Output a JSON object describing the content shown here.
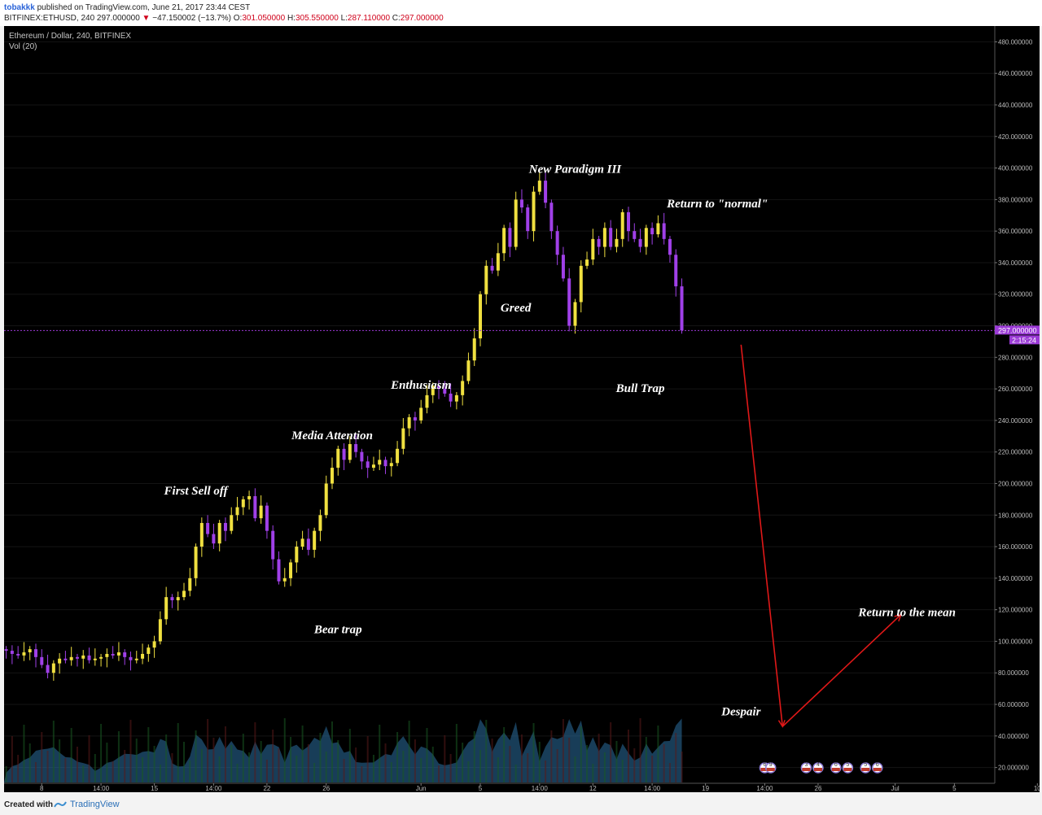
{
  "header": {
    "author": "tobakkk",
    "published": "published on TradingView.com, June 21, 2017 23:44 CEST",
    "symbol": "BITFINEX:ETHUSD, 240",
    "last": "297.000000",
    "change": "−47.150002 (−13.7%)",
    "ohlc": {
      "o_label": "O:",
      "o": "301.050000",
      "h_label": "H:",
      "h": "305.550000",
      "l_label": "L:",
      "l": "287.110000",
      "c_label": "C:",
      "c": "297.000000"
    }
  },
  "legend": {
    "title": "Ethereum / Dollar, 240, BITFINEX",
    "volume": "Vol (20)"
  },
  "price_tag": {
    "price": "297.000000",
    "countdown": "2:15:24"
  },
  "footer": {
    "created": "Created with",
    "brand": "TradingView"
  },
  "colors": {
    "up": "#f0e040",
    "down": "#a040e8",
    "ann_arrow": "#e01818",
    "price_line": "#9b3ad6",
    "volume_area": "#2b6fa0"
  },
  "chart_data": {
    "type": "candlestick",
    "title": "Ethereum / Dollar, 240, BITFINEX",
    "ylim": [
      10,
      490
    ],
    "y_ticks": [
      20,
      40,
      60,
      80,
      100,
      120,
      140,
      160,
      180,
      200,
      220,
      240,
      260,
      280,
      300,
      320,
      340,
      360,
      380,
      400,
      420,
      440,
      460,
      480
    ],
    "y_tick_labels": [
      "20.000000",
      "40.000000",
      "60.000000",
      "80.000000",
      "100.000000",
      "120.000000",
      "140.000000",
      "160.000000",
      "180.000000",
      "200.000000",
      "220.000000",
      "240.000000",
      "260.000000",
      "280.000000",
      "300.000000",
      "320.000000",
      "340.000000",
      "360.000000",
      "380.000000",
      "400.000000",
      "420.000000",
      "440.000000",
      "460.000000",
      "480.000000"
    ],
    "x_ticks": [
      {
        "label": "8",
        "bar": 6
      },
      {
        "label": "14:00",
        "bar": 16
      },
      {
        "label": "15",
        "bar": 25
      },
      {
        "label": "14:00",
        "bar": 35
      },
      {
        "label": "22",
        "bar": 44
      },
      {
        "label": "26",
        "bar": 54
      },
      {
        "label": "Jun",
        "bar": 70
      },
      {
        "label": "5",
        "bar": 80
      },
      {
        "label": "14:00",
        "bar": 90
      },
      {
        "label": "12",
        "bar": 99
      },
      {
        "label": "14:00",
        "bar": 109
      },
      {
        "label": "19",
        "bar": 118
      },
      {
        "label": "14:00",
        "bar": 128
      },
      {
        "label": "26",
        "bar": 137
      },
      {
        "label": "Jul",
        "bar": 150
      },
      {
        "label": "5",
        "bar": 160
      },
      {
        "label": "10",
        "bar": 174
      }
    ],
    "closes": [
      94,
      92,
      91,
      93,
      95,
      90,
      85,
      80,
      86,
      89,
      88,
      90,
      89,
      91,
      88,
      89,
      90,
      92,
      91,
      93,
      90,
      88,
      89,
      92,
      96,
      100,
      114,
      128,
      126,
      128,
      132,
      140,
      160,
      175,
      168,
      162,
      175,
      170,
      180,
      185,
      190,
      192,
      178,
      186,
      170,
      152,
      138,
      140,
      150,
      160,
      165,
      158,
      170,
      180,
      200,
      210,
      222,
      215,
      225,
      220,
      214,
      210,
      212,
      215,
      211,
      213,
      222,
      235,
      242,
      240,
      248,
      256,
      262,
      260,
      257,
      252,
      256,
      265,
      278,
      292,
      320,
      338,
      335,
      346,
      362,
      350,
      380,
      375,
      360,
      385,
      392,
      378,
      360,
      345,
      330,
      300,
      315,
      338,
      342,
      355,
      350,
      362,
      350,
      355,
      372,
      360,
      355,
      350,
      362,
      358,
      365,
      355,
      345,
      325,
      297
    ],
    "annotations": [
      {
        "text": "First Sell off",
        "bar": 32,
        "price": 193
      },
      {
        "text": "Media Attention",
        "bar": 55,
        "price": 228
      },
      {
        "text": "Bear trap",
        "bar": 56,
        "price": 105
      },
      {
        "text": "Enthusiasm",
        "bar": 70,
        "price": 260
      },
      {
        "text": "Greed",
        "bar": 86,
        "price": 309
      },
      {
        "text": "New Paradigm III",
        "bar": 96,
        "price": 397
      },
      {
        "text": "Bull Trap",
        "bar": 107,
        "price": 258
      },
      {
        "text": "Return to \"normal\"",
        "bar": 120,
        "price": 375
      },
      {
        "text": "Despair",
        "bar": 124,
        "price": 53
      },
      {
        "text": "Return to the mean",
        "bar": 152,
        "price": 116
      }
    ],
    "arrows": [
      {
        "from": {
          "bar": 124,
          "price": 288
        },
        "to": {
          "bar": 131,
          "price": 46
        }
      },
      {
        "from": {
          "bar": 131,
          "price": 46
        },
        "to": {
          "bar": 151,
          "price": 117
        }
      }
    ],
    "event_markers": [
      {
        "bar": 128,
        "count": "6"
      },
      {
        "bar": 129,
        "count": "9"
      },
      {
        "bar": 135,
        "count": "3"
      },
      {
        "bar": 137,
        "count": "4"
      },
      {
        "bar": 140,
        "count": "6"
      },
      {
        "bar": 142,
        "count": "5"
      },
      {
        "bar": 145,
        "count": "5"
      },
      {
        "bar": 147,
        "count": "6"
      }
    ]
  }
}
